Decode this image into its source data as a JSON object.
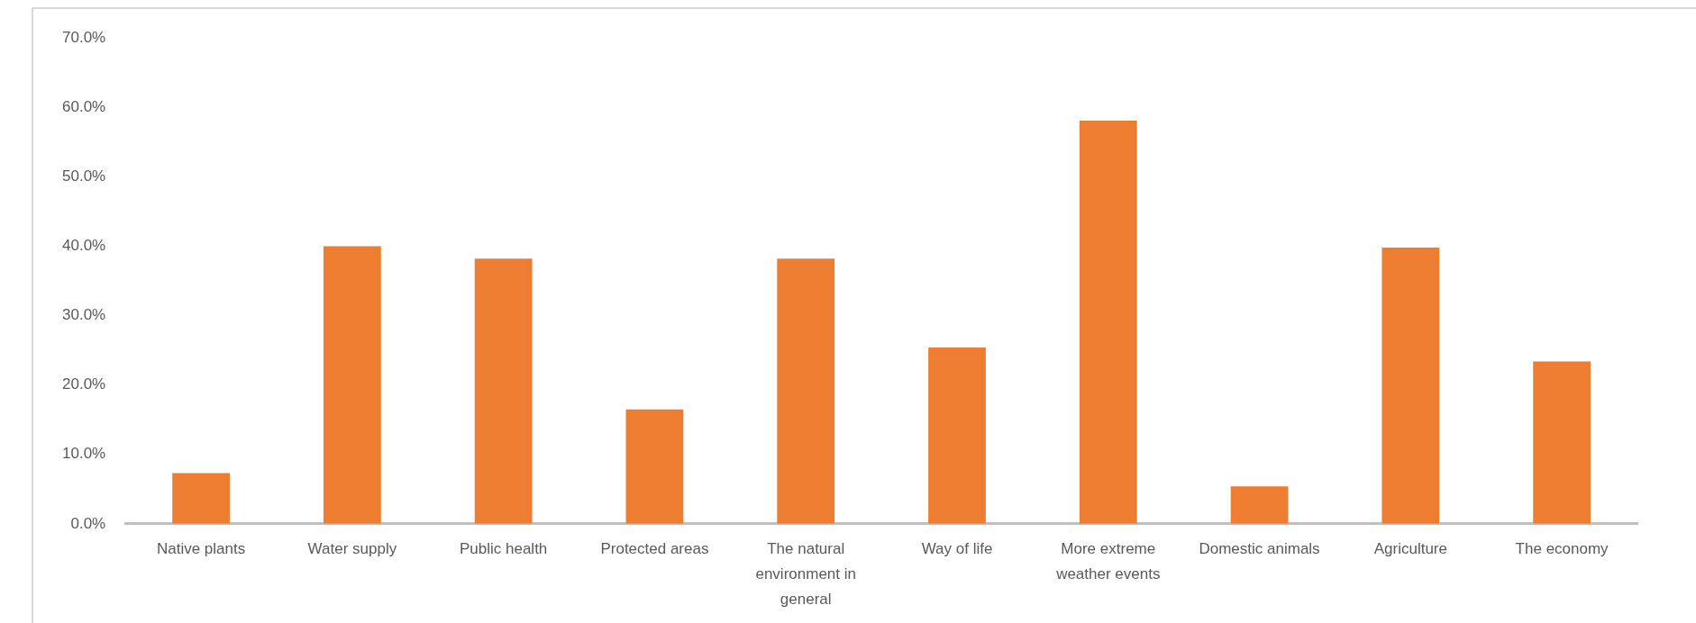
{
  "chart_data": {
    "type": "bar",
    "categories": [
      "Native plants",
      "Water supply",
      "Public health",
      "Protected areas",
      "The natural environment in general",
      "Way of life",
      "More extreme weather events",
      "Domestic animals",
      "Agriculture",
      "The economy"
    ],
    "values": [
      7.3,
      40.0,
      38.2,
      16.5,
      38.2,
      25.4,
      58.1,
      5.4,
      39.8,
      23.4
    ],
    "color": "#ed7d31",
    "ylim": [
      0,
      70
    ],
    "yticks": [
      {
        "value": 0,
        "label": "0.0%"
      },
      {
        "value": 10,
        "label": "10.0%"
      },
      {
        "value": 20,
        "label": "20.0%"
      },
      {
        "value": 30,
        "label": "30.0%"
      },
      {
        "value": 40,
        "label": "40.0%"
      },
      {
        "value": 50,
        "label": "50.0%"
      },
      {
        "value": 60,
        "label": "60.0%"
      },
      {
        "value": 70,
        "label": "70.0%"
      }
    ],
    "grid": false,
    "legend": false
  }
}
